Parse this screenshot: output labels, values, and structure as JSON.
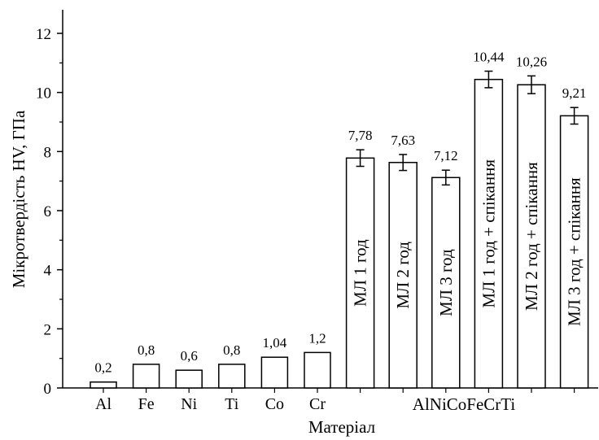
{
  "chart_data": {
    "type": "bar",
    "xlabel": "Матеріал",
    "ylabel": "Мікротвердість HV, ГПа",
    "ylim": [
      0,
      13
    ],
    "yticks": [
      0,
      2,
      4,
      6,
      8,
      10,
      12
    ],
    "group_label": "AlNiCoFeCrTi",
    "grid": false,
    "categories": [
      "Al",
      "Fe",
      "Ni",
      "Ti",
      "Co",
      "Cr",
      "МЛ 1 год",
      "МЛ 2 год",
      "МЛ 3 год",
      "МЛ 1 год + спікання",
      "МЛ 2 год + спікання",
      "МЛ 3 год + спікання"
    ],
    "values": [
      0.2,
      0.8,
      0.6,
      0.8,
      1.04,
      1.2,
      7.78,
      7.63,
      7.12,
      10.44,
      10.26,
      9.21
    ],
    "value_labels": [
      "0,2",
      "0,8",
      "0,6",
      "0,8",
      "1,04",
      "1,2",
      "7,78",
      "7,63",
      "7,12",
      "10,44",
      "10,26",
      "9,21"
    ],
    "errors": [
      0,
      0,
      0,
      0,
      0,
      0,
      0.28,
      0.27,
      0.25,
      0.28,
      0.3,
      0.28
    ],
    "label_position": [
      "below",
      "below",
      "below",
      "below",
      "below",
      "below",
      "inside",
      "inside",
      "inside",
      "inside",
      "inside",
      "inside"
    ]
  }
}
